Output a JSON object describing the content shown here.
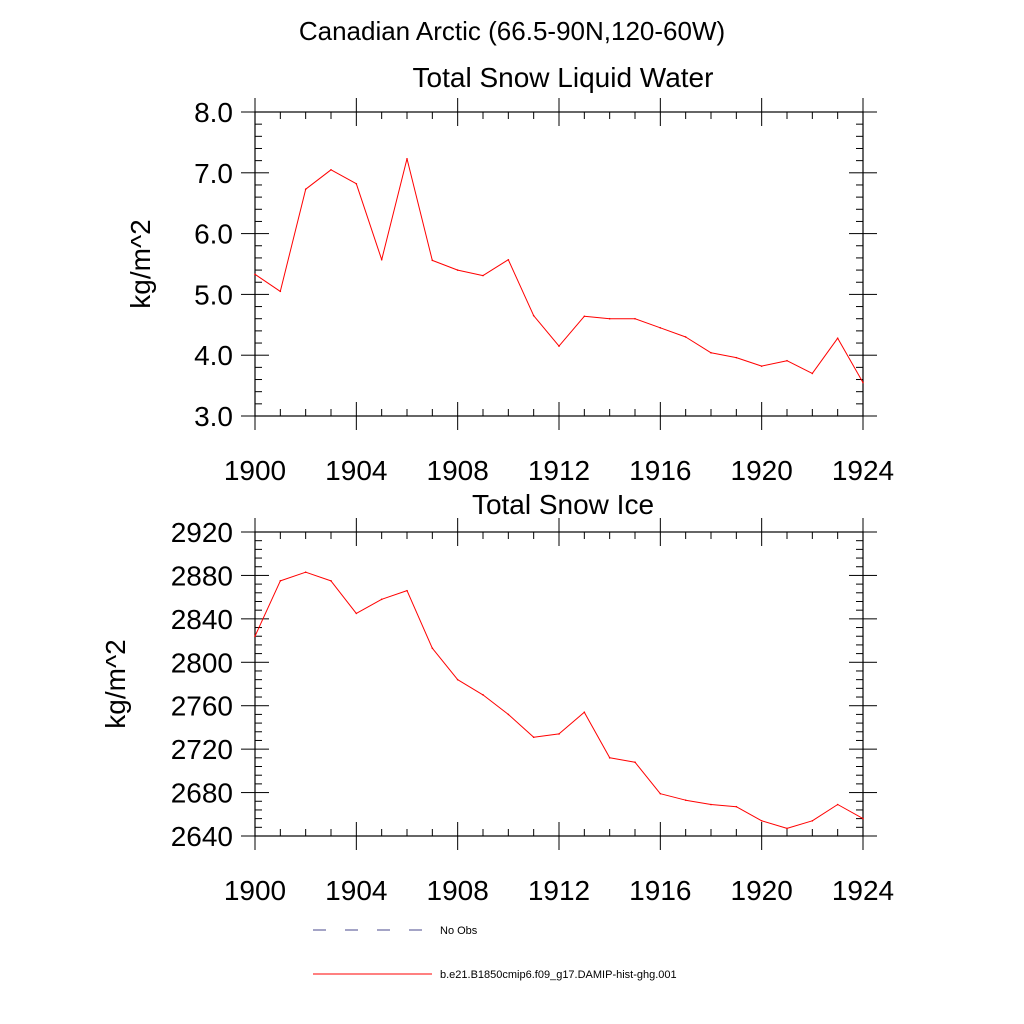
{
  "figure_title": "Canadian Arctic (66.5-90N,120-60W)",
  "colors": {
    "model_line": "#ff0000",
    "obs_line": "#4a4a8c",
    "axis": "#000000"
  },
  "legend": {
    "obs_label": "No Obs",
    "model_label": "b.e21.B1850cmip6.f09_g17.DAMIP-hist-ghg.001"
  },
  "chart_data": [
    {
      "type": "line",
      "title": "Total Snow Liquid Water",
      "xlabel": "",
      "ylabel": "kg/m^2",
      "xlim": [
        1900,
        1924
      ],
      "ylim": [
        3.0,
        8.0
      ],
      "xticks": [
        1900,
        1904,
        1908,
        1912,
        1916,
        1920,
        1924
      ],
      "xtick_labels": [
        "1900",
        "1904",
        "1908",
        "1912",
        "1916",
        "1920",
        "1924"
      ],
      "yticks": [
        3.0,
        4.0,
        5.0,
        6.0,
        7.0,
        8.0
      ],
      "ytick_labels": [
        "3.0",
        "4.0",
        "5.0",
        "6.0",
        "7.0",
        "8.0"
      ],
      "grid": false,
      "series": [
        {
          "name": "b.e21.B1850cmip6.f09_g17.DAMIP-hist-ghg.001",
          "x": [
            1900,
            1901,
            1902,
            1903,
            1904,
            1905,
            1906,
            1907,
            1908,
            1909,
            1910,
            1911,
            1912,
            1913,
            1914,
            1915,
            1916,
            1917,
            1918,
            1919,
            1920,
            1921,
            1922,
            1923,
            1924
          ],
          "y": [
            5.33,
            5.05,
            6.73,
            7.05,
            6.82,
            5.57,
            7.23,
            5.56,
            5.4,
            5.31,
            5.57,
            4.65,
            4.15,
            4.64,
            4.6,
            4.6,
            4.45,
            4.3,
            4.04,
            3.96,
            3.82,
            3.91,
            3.7,
            4.28,
            3.55
          ]
        }
      ]
    },
    {
      "type": "line",
      "title": "Total Snow Ice",
      "xlabel": "",
      "ylabel": "kg/m^2",
      "xlim": [
        1900,
        1924
      ],
      "ylim": [
        2640,
        2920
      ],
      "xticks": [
        1900,
        1904,
        1908,
        1912,
        1916,
        1920,
        1924
      ],
      "xtick_labels": [
        "1900",
        "1904",
        "1908",
        "1912",
        "1916",
        "1920",
        "1924"
      ],
      "yticks": [
        2640,
        2680,
        2720,
        2760,
        2800,
        2840,
        2880,
        2920
      ],
      "ytick_labels": [
        "2640",
        "2680",
        "2720",
        "2760",
        "2800",
        "2840",
        "2880",
        "2920"
      ],
      "grid": false,
      "series": [
        {
          "name": "b.e21.B1850cmip6.f09_g17.DAMIP-hist-ghg.001",
          "x": [
            1900,
            1901,
            1902,
            1903,
            1904,
            1905,
            1906,
            1907,
            1908,
            1909,
            1910,
            1911,
            1912,
            1913,
            1914,
            1915,
            1916,
            1917,
            1918,
            1919,
            1920,
            1921,
            1922,
            1923,
            1924
          ],
          "y": [
            2824,
            2875,
            2883,
            2875,
            2845,
            2858,
            2866,
            2813,
            2784,
            2770,
            2752,
            2731,
            2734,
            2754,
            2712,
            2708,
            2679,
            2673,
            2669,
            2667,
            2654,
            2647,
            2654,
            2669,
            2656
          ]
        }
      ]
    }
  ]
}
